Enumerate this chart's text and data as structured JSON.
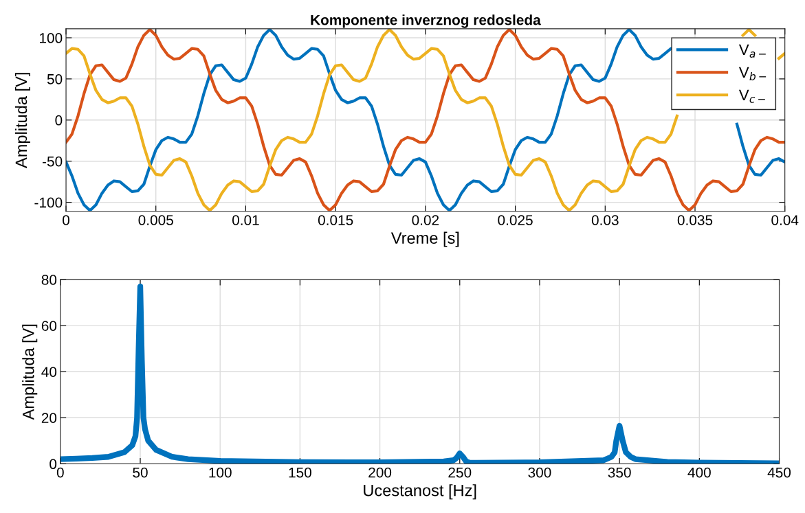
{
  "chart_data": [
    {
      "type": "line",
      "title": "Komponente inverznog redosleda",
      "xlabel": "Vreme [s]",
      "ylabel": "Amplituda [V]",
      "x": [
        0,
        0.000333,
        0.000667,
        0.001,
        0.001333,
        0.001667,
        0.002,
        0.002333,
        0.002667,
        0.003,
        0.003333,
        0.003667,
        0.004,
        0.004333,
        0.004667,
        0.005,
        0.005333,
        0.005667,
        0.006,
        0.006333,
        0.006667,
        0.007,
        0.007333,
        0.007667,
        0.008,
        0.008333,
        0.008667,
        0.009,
        0.009333,
        0.009667,
        0.01,
        0.010333,
        0.010667,
        0.011,
        0.011333,
        0.011667,
        0.012,
        0.012333,
        0.012667,
        0.013,
        0.013333,
        0.013667,
        0.014,
        0.014333,
        0.014667,
        0.015,
        0.015333,
        0.015667,
        0.016,
        0.016333,
        0.016667,
        0.017,
        0.017333,
        0.017667,
        0.018,
        0.018333,
        0.018667,
        0.019,
        0.019333,
        0.019667,
        0.02,
        0.020333,
        0.020667,
        0.021,
        0.021333,
        0.021667,
        0.022,
        0.022333,
        0.022667,
        0.023,
        0.023333,
        0.023667,
        0.024,
        0.024333,
        0.024667,
        0.025,
        0.025333,
        0.025667,
        0.026,
        0.026333,
        0.026667,
        0.027,
        0.027333,
        0.027667,
        0.028,
        0.028333,
        0.028667,
        0.029,
        0.029333,
        0.029667,
        0.03,
        0.030333,
        0.030667,
        0.031,
        0.031333,
        0.031667,
        0.032,
        0.032333,
        0.032667,
        0.033,
        0.033333,
        0.033667,
        0.034,
        0.034333,
        0.034667,
        0.035,
        0.035333,
        0.035667,
        0.036,
        0.036333,
        0.036667,
        0.037,
        0.037333,
        0.037667,
        0.038,
        0.038333,
        0.038667,
        0.039,
        0.039333,
        0.039667,
        0.04
      ],
      "series": [
        {
          "name": "V$_{a−}$",
          "color": "#0072bd",
          "values": [
            -51,
            -68,
            -89,
            -103,
            -110,
            -103,
            -89,
            -79,
            -74,
            -75,
            -81,
            -87,
            -86,
            -78,
            -56,
            -36,
            -25,
            -21,
            -23,
            -27,
            -27,
            -17,
            5,
            32,
            55,
            66,
            67,
            58,
            49,
            47,
            51,
            68,
            89,
            103,
            110,
            103,
            89,
            79,
            74,
            75,
            81,
            87,
            86,
            78,
            56,
            36,
            25,
            21,
            23,
            27,
            27,
            17,
            -5,
            -32,
            -55,
            -66,
            -67,
            -58,
            -49,
            -47,
            -51,
            -68,
            -89,
            -103,
            -110,
            -103,
            -89,
            -79,
            -74,
            -75,
            -81,
            -87,
            -86,
            -78,
            -56,
            -36,
            -25,
            -21,
            -23,
            -27,
            -27,
            -17,
            5,
            32,
            55,
            66,
            67,
            58,
            49,
            47,
            51,
            68,
            89,
            103,
            110,
            103,
            89,
            79,
            74,
            75,
            81,
            87,
            86,
            null,
            null,
            null,
            null,
            null,
            null,
            null,
            null,
            null,
            -5,
            -32,
            -55,
            -66,
            -67,
            -58,
            -49,
            -47,
            -51
          ]
        },
        {
          "name": "V$_{b−}$",
          "color": "#d95319",
          "values": [
            -27,
            -17,
            5,
            32,
            55,
            66,
            67,
            58,
            49,
            47,
            51,
            68,
            89,
            103,
            110,
            103,
            89,
            79,
            74,
            75,
            81,
            87,
            86,
            78,
            56,
            36,
            25,
            21,
            23,
            27,
            27,
            17,
            -5,
            -32,
            -55,
            -66,
            -67,
            -58,
            -49,
            -47,
            -51,
            -68,
            -89,
            -103,
            -110,
            -103,
            -89,
            -79,
            -74,
            -75,
            -81,
            -87,
            -86,
            -78,
            -56,
            -36,
            -25,
            -21,
            -23,
            -27,
            -27,
            -17,
            5,
            32,
            55,
            66,
            67,
            58,
            49,
            47,
            51,
            68,
            89,
            103,
            110,
            103,
            89,
            79,
            74,
            75,
            81,
            87,
            86,
            78,
            56,
            36,
            25,
            21,
            23,
            27,
            27,
            17,
            -5,
            -32,
            -55,
            -66,
            -67,
            -58,
            -49,
            -47,
            -51,
            -68,
            -89,
            -103,
            -110,
            -103,
            -89,
            -79,
            -74,
            -75,
            -81,
            -87,
            -86,
            -78,
            -56,
            -36,
            -25,
            -21,
            -23,
            -27,
            -27
          ]
        },
        {
          "name": "V$_{c−}$",
          "color": "#edb120",
          "values": [
            81,
            87,
            86,
            78,
            56,
            36,
            25,
            21,
            23,
            27,
            27,
            17,
            -5,
            -32,
            -55,
            -66,
            -67,
            -58,
            -49,
            -47,
            -51,
            -68,
            -89,
            -103,
            -110,
            -103,
            -89,
            -79,
            -74,
            -75,
            -81,
            -87,
            -86,
            -78,
            -56,
            -36,
            -25,
            -21,
            -23,
            -27,
            -27,
            -17,
            5,
            32,
            55,
            66,
            67,
            58,
            49,
            47,
            51,
            68,
            89,
            103,
            110,
            103,
            89,
            79,
            74,
            75,
            81,
            87,
            86,
            78,
            56,
            36,
            25,
            21,
            23,
            27,
            27,
            17,
            -5,
            -32,
            -55,
            -66,
            -67,
            -58,
            -49,
            -47,
            -51,
            -68,
            -89,
            -103,
            -110,
            -103,
            -89,
            -79,
            -74,
            -75,
            -81,
            -87,
            -86,
            -78,
            -56,
            -36,
            -25,
            -21,
            -23,
            -27,
            -27,
            -17,
            5,
            null,
            null,
            null,
            null,
            null,
            null,
            null,
            null,
            null,
            null,
            103,
            110,
            103,
            null,
            null,
            null,
            75,
            81
          ]
        }
      ],
      "xlim": [
        0,
        0.04
      ],
      "xticks": [
        0,
        0.005,
        0.01,
        0.015,
        0.02,
        0.025,
        0.03,
        0.035,
        0.04
      ],
      "ylim": [
        -111,
        111
      ],
      "yticks": [
        -100,
        -50,
        0,
        50,
        100
      ],
      "grid": true,
      "legend": "top right",
      "line_style": "solid",
      "marker": "none"
    },
    {
      "type": "line",
      "xlabel": "Ucestanost [Hz]",
      "ylabel": "Amplituda [V]",
      "x": [
        0,
        10,
        20,
        30,
        40,
        45,
        47,
        48,
        49,
        50,
        51,
        52,
        53,
        55,
        60,
        70,
        80,
        100,
        150,
        200,
        240,
        246,
        248,
        250,
        252,
        254,
        256,
        260,
        300,
        340,
        345,
        347,
        348,
        350,
        352,
        354,
        357,
        360,
        380,
        400,
        450
      ],
      "series": [
        {
          "color": "#0072bd",
          "values": [
            2,
            2.2,
            2.5,
            3,
            5,
            8,
            12,
            20,
            50,
            77,
            45,
            20,
            15,
            10,
            6,
            3,
            2,
            1.2,
            0.7,
            0.6,
            1,
            1.5,
            2.5,
            4.5,
            3,
            1,
            0.5,
            0.4,
            0.6,
            1.5,
            3,
            5,
            10,
            16.5,
            10,
            5,
            3,
            2,
            0.8,
            0.5,
            0.2
          ]
        }
      ],
      "xlim": [
        0,
        450
      ],
      "xticks": [
        0,
        50,
        100,
        150,
        200,
        250,
        300,
        350,
        400,
        450
      ],
      "ylim": [
        0,
        80
      ],
      "yticks": [
        0,
        20,
        40,
        60,
        80
      ],
      "grid": true,
      "line_style": "solid",
      "marker": "none"
    }
  ]
}
